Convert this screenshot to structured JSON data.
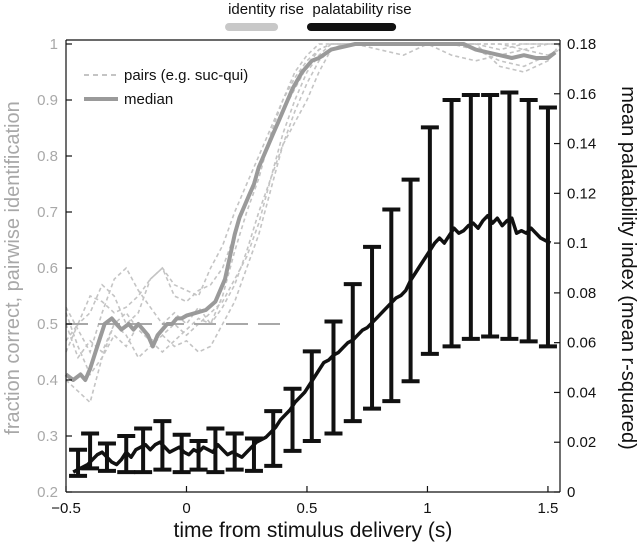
{
  "chart_data": {
    "type": "line",
    "xlabel": "time from stimulus delivery (s)",
    "ylabel_left": "fraction correct, pairwise identification",
    "ylabel_right": "mean palatability index (mean r-squared)",
    "xlim": [
      -0.5,
      1.55
    ],
    "ylim_left": [
      0.2,
      1.0
    ],
    "ylim_right": [
      0,
      0.18
    ],
    "x_ticks": [
      {
        "value": -0.5,
        "label": "−0.5"
      },
      {
        "value": 0,
        "label": "0"
      },
      {
        "value": 0.5,
        "label": "0.5"
      },
      {
        "value": 1,
        "label": "1"
      },
      {
        "value": 1.5,
        "label": "1.5"
      }
    ],
    "y_left_ticks": [
      {
        "value": 0.2,
        "label": "0.2"
      },
      {
        "value": 0.3,
        "label": "0.3"
      },
      {
        "value": 0.4,
        "label": "0.4"
      },
      {
        "value": 0.5,
        "label": "0.5"
      },
      {
        "value": 0.6,
        "label": "0.6"
      },
      {
        "value": 0.7,
        "label": "0.7"
      },
      {
        "value": 0.8,
        "label": "0.8"
      },
      {
        "value": 0.9,
        "label": "0.9"
      },
      {
        "value": 1.0,
        "label": "1"
      }
    ],
    "y_right_ticks": [
      {
        "value": 0,
        "label": "0"
      },
      {
        "value": 0.02,
        "label": "0.02"
      },
      {
        "value": 0.04,
        "label": "0.04"
      },
      {
        "value": 0.06,
        "label": "0.06"
      },
      {
        "value": 0.08,
        "label": "0.08"
      },
      {
        "value": 0.1,
        "label": "0.1"
      },
      {
        "value": 0.12,
        "label": "0.12"
      },
      {
        "value": 0.14,
        "label": "0.14"
      },
      {
        "value": 0.16,
        "label": "0.16"
      },
      {
        "value": 0.18,
        "label": "0.18"
      }
    ],
    "chance_level": 0.5,
    "legend": {
      "placement": "top-left",
      "entries": [
        {
          "label": "pairs (e.g. suc-qui)",
          "style": "dashed",
          "color": "#c4c4c4"
        },
        {
          "label": "median",
          "style": "solid",
          "color": "#9a9a9a"
        }
      ]
    },
    "rise_bars": [
      {
        "label": "identity rise",
        "x_start": 0.16,
        "x_end": 0.38,
        "color": "#c8c8c8"
      },
      {
        "label": "palatability rise",
        "x_start": 0.5,
        "x_end": 0.87,
        "color": "#111111"
      }
    ],
    "series": [
      {
        "name": "median",
        "axis": "left",
        "color": "#9a9a9a",
        "x": [
          -0.5,
          -0.47,
          -0.44,
          -0.42,
          -0.4,
          -0.37,
          -0.34,
          -0.31,
          -0.29,
          -0.27,
          -0.24,
          -0.22,
          -0.2,
          -0.18,
          -0.16,
          -0.14,
          -0.12,
          -0.1,
          -0.08,
          -0.06,
          -0.04,
          -0.02,
          0.0,
          0.04,
          0.08,
          0.12,
          0.16,
          0.18,
          0.2,
          0.22,
          0.24,
          0.26,
          0.28,
          0.3,
          0.32,
          0.34,
          0.36,
          0.38,
          0.4,
          0.42,
          0.44,
          0.46,
          0.48,
          0.5,
          0.52,
          0.55,
          0.6,
          0.65,
          0.7,
          0.75,
          0.8,
          0.85,
          0.9,
          0.95,
          1.0,
          1.05,
          1.1,
          1.15,
          1.2,
          1.25,
          1.3,
          1.35,
          1.4,
          1.45,
          1.5,
          1.53
        ],
        "y": [
          0.41,
          0.4,
          0.41,
          0.4,
          0.42,
          0.46,
          0.5,
          0.51,
          0.5,
          0.49,
          0.5,
          0.49,
          0.5,
          0.49,
          0.48,
          0.46,
          0.48,
          0.49,
          0.5,
          0.5,
          0.51,
          0.51,
          0.515,
          0.52,
          0.525,
          0.54,
          0.58,
          0.62,
          0.66,
          0.69,
          0.71,
          0.73,
          0.75,
          0.78,
          0.8,
          0.82,
          0.84,
          0.86,
          0.88,
          0.9,
          0.92,
          0.935,
          0.95,
          0.96,
          0.97,
          0.975,
          0.99,
          0.995,
          1.0,
          1.0,
          1.0,
          1.0,
          1.0,
          1.0,
          1.0,
          1.0,
          1.0,
          1.0,
          0.99,
          0.985,
          0.98,
          0.975,
          0.98,
          0.975,
          0.975,
          0.985
        ]
      },
      {
        "name": "pairs (e.g. suc-qui)",
        "axis": "left",
        "style": "dashed",
        "color": "#c4c4c4",
        "lines": [
          {
            "x": [
              -0.5,
              -0.45,
              -0.4,
              -0.35,
              -0.3,
              -0.25,
              -0.2,
              -0.15,
              -0.1,
              -0.05,
              0.0,
              0.05,
              0.1,
              0.15,
              0.2,
              0.25,
              0.3,
              0.35,
              0.4,
              0.45,
              0.5,
              0.55,
              0.6,
              0.65,
              0.7,
              0.8,
              0.9,
              1.0,
              1.1,
              1.2,
              1.3,
              1.4,
              1.5,
              1.55
            ],
            "y": [
              0.53,
              0.49,
              0.45,
              0.52,
              0.58,
              0.6,
              0.56,
              0.53,
              0.5,
              0.52,
              0.5,
              0.53,
              0.5,
              0.55,
              0.63,
              0.7,
              0.76,
              0.84,
              0.9,
              0.95,
              0.98,
              1.0,
              1.0,
              1.0,
              1.0,
              1.0,
              1.0,
              1.0,
              1.0,
              1.0,
              0.96,
              0.95,
              0.97,
              1.0
            ]
          },
          {
            "x": [
              -0.5,
              -0.45,
              -0.4,
              -0.35,
              -0.3,
              -0.25,
              -0.2,
              -0.15,
              -0.1,
              -0.05,
              0.0,
              0.05,
              0.1,
              0.15,
              0.2,
              0.25,
              0.3,
              0.35,
              0.4,
              0.45,
              0.5,
              0.55,
              0.6,
              0.65,
              0.7,
              0.8,
              0.9,
              1.0,
              1.1,
              1.2,
              1.3,
              1.4,
              1.5,
              1.55
            ],
            "y": [
              0.47,
              0.5,
              0.55,
              0.54,
              0.52,
              0.53,
              0.55,
              0.58,
              0.6,
              0.57,
              0.56,
              0.55,
              0.6,
              0.64,
              0.7,
              0.75,
              0.8,
              0.85,
              0.9,
              0.94,
              0.97,
              0.99,
              1.0,
              1.0,
              1.0,
              1.0,
              1.0,
              1.0,
              1.0,
              1.0,
              1.0,
              1.0,
              1.0,
              1.0
            ]
          },
          {
            "x": [
              -0.5,
              -0.45,
              -0.4,
              -0.35,
              -0.3,
              -0.25,
              -0.2,
              -0.15,
              -0.1,
              -0.05,
              0.0,
              0.05,
              0.1,
              0.15,
              0.2,
              0.25,
              0.3,
              0.35,
              0.4,
              0.45,
              0.5,
              0.55,
              0.6,
              0.65,
              0.7,
              0.8,
              0.9,
              1.0,
              1.1,
              1.2,
              1.3,
              1.4,
              1.5,
              1.55
            ],
            "y": [
              0.52,
              0.46,
              0.41,
              0.44,
              0.5,
              0.52,
              0.49,
              0.47,
              0.48,
              0.46,
              0.47,
              0.45,
              0.46,
              0.5,
              0.54,
              0.6,
              0.66,
              0.74,
              0.82,
              0.88,
              0.93,
              0.97,
              0.99,
              1.0,
              1.0,
              1.0,
              1.0,
              1.0,
              0.98,
              0.97,
              0.98,
              0.99,
              1.0,
              1.0
            ]
          },
          {
            "x": [
              -0.5,
              -0.45,
              -0.4,
              -0.35,
              -0.3,
              -0.25,
              -0.2,
              -0.15,
              -0.1,
              -0.05,
              0.0,
              0.05,
              0.1,
              0.15,
              0.2,
              0.25,
              0.3,
              0.35,
              0.4,
              0.45,
              0.5,
              0.55,
              0.6,
              0.65,
              0.7,
              0.8,
              0.9,
              1.0,
              1.1,
              1.2,
              1.3,
              1.4,
              1.5,
              1.55
            ],
            "y": [
              0.45,
              0.5,
              0.52,
              0.57,
              0.55,
              0.5,
              0.52,
              0.58,
              0.6,
              0.55,
              0.54,
              0.56,
              0.57,
              0.6,
              0.66,
              0.72,
              0.78,
              0.83,
              0.88,
              0.92,
              0.96,
              0.99,
              1.0,
              1.0,
              1.0,
              1.0,
              1.0,
              1.0,
              1.0,
              1.0,
              1.0,
              0.99,
              0.98,
              0.99
            ]
          },
          {
            "x": [
              -0.5,
              -0.45,
              -0.4,
              -0.35,
              -0.3,
              -0.25,
              -0.2,
              -0.15,
              -0.1,
              -0.05,
              0.0,
              0.05,
              0.1,
              0.15,
              0.2,
              0.25,
              0.3,
              0.35,
              0.4,
              0.45,
              0.5,
              0.55,
              0.6,
              0.65,
              0.7,
              0.8,
              0.9,
              1.0,
              1.1,
              1.2,
              1.3,
              1.4,
              1.5,
              1.55
            ],
            "y": [
              0.5,
              0.44,
              0.47,
              0.45,
              0.5,
              0.48,
              0.44,
              0.46,
              0.48,
              0.5,
              0.48,
              0.5,
              0.52,
              0.54,
              0.58,
              0.62,
              0.68,
              0.76,
              0.84,
              0.9,
              0.95,
              0.98,
              1.0,
              1.0,
              1.0,
              0.99,
              0.98,
              1.0,
              1.0,
              0.99,
              0.97,
              0.96,
              0.98,
              0.99
            ]
          },
          {
            "x": [
              -0.5,
              -0.45,
              -0.4,
              -0.35,
              -0.3,
              -0.25,
              -0.2,
              -0.15,
              -0.1,
              -0.05,
              0.0,
              0.05,
              0.1,
              0.15,
              0.2,
              0.25,
              0.3,
              0.35,
              0.4,
              0.45,
              0.5,
              0.55,
              0.6,
              0.65,
              0.7,
              0.8,
              0.9,
              1.0,
              1.1,
              1.2,
              1.3,
              1.4,
              1.5,
              1.55
            ],
            "y": [
              0.4,
              0.38,
              0.36,
              0.44,
              0.48,
              0.46,
              0.5,
              0.47,
              0.45,
              0.47,
              0.49,
              0.51,
              0.5,
              0.53,
              0.57,
              0.63,
              0.7,
              0.76,
              0.82,
              0.86,
              0.9,
              0.95,
              0.99,
              1.0,
              1.0,
              1.0,
              1.0,
              1.0,
              1.0,
              1.0,
              0.99,
              1.0,
              1.0,
              1.0
            ]
          }
        ]
      },
      {
        "name": "mean palatability index",
        "axis": "right",
        "color": "#111111",
        "x": [
          -0.47,
          -0.45,
          -0.43,
          -0.41,
          -0.39,
          -0.37,
          -0.35,
          -0.33,
          -0.31,
          -0.29,
          -0.27,
          -0.25,
          -0.23,
          -0.21,
          -0.19,
          -0.17,
          -0.15,
          -0.13,
          -0.11,
          -0.09,
          -0.07,
          -0.05,
          -0.03,
          -0.01,
          0.01,
          0.03,
          0.05,
          0.07,
          0.09,
          0.11,
          0.13,
          0.15,
          0.17,
          0.19,
          0.21,
          0.23,
          0.25,
          0.27,
          0.29,
          0.31,
          0.33,
          0.35,
          0.37,
          0.39,
          0.41,
          0.43,
          0.45,
          0.47,
          0.49,
          0.51,
          0.53,
          0.55,
          0.57,
          0.59,
          0.61,
          0.63,
          0.65,
          0.67,
          0.69,
          0.71,
          0.73,
          0.75,
          0.77,
          0.79,
          0.81,
          0.83,
          0.85,
          0.87,
          0.89,
          0.91,
          0.93,
          0.95,
          0.97,
          0.99,
          1.01,
          1.03,
          1.05,
          1.07,
          1.09,
          1.11,
          1.13,
          1.15,
          1.17,
          1.19,
          1.21,
          1.23,
          1.25,
          1.27,
          1.29,
          1.31,
          1.33,
          1.35,
          1.37,
          1.39,
          1.41,
          1.43,
          1.45,
          1.47,
          1.49,
          1.51
        ],
        "y": [
          0.008,
          0.009,
          0.01,
          0.011,
          0.013,
          0.015,
          0.016,
          0.014,
          0.012,
          0.011,
          0.013,
          0.016,
          0.014,
          0.017,
          0.018,
          0.019,
          0.017,
          0.019,
          0.02,
          0.018,
          0.016,
          0.017,
          0.018,
          0.016,
          0.015,
          0.017,
          0.016,
          0.018,
          0.017,
          0.016,
          0.019,
          0.017,
          0.015,
          0.016,
          0.015,
          0.014,
          0.016,
          0.018,
          0.02,
          0.021,
          0.022,
          0.024,
          0.026,
          0.029,
          0.031,
          0.033,
          0.036,
          0.038,
          0.04,
          0.043,
          0.046,
          0.049,
          0.052,
          0.053,
          0.055,
          0.056,
          0.058,
          0.06,
          0.061,
          0.063,
          0.065,
          0.066,
          0.068,
          0.07,
          0.072,
          0.074,
          0.076,
          0.078,
          0.079,
          0.081,
          0.085,
          0.088,
          0.091,
          0.094,
          0.097,
          0.1,
          0.102,
          0.1,
          0.103,
          0.106,
          0.104,
          0.105,
          0.107,
          0.108,
          0.106,
          0.109,
          0.111,
          0.108,
          0.11,
          0.107,
          0.109,
          0.11,
          0.104,
          0.105,
          0.104,
          0.106,
          0.104,
          0.102,
          0.101,
          0.1
        ]
      },
      {
        "name": "palatability error bars",
        "axis": "right",
        "color": "#111111",
        "points": [
          {
            "x": -0.45,
            "low": 0.0065,
            "high": 0.017
          },
          {
            "x": -0.4,
            "low": 0.0095,
            "high": 0.0235
          },
          {
            "x": -0.33,
            "low": 0.0085,
            "high": 0.0195
          },
          {
            "x": -0.25,
            "low": 0.008,
            "high": 0.0225
          },
          {
            "x": -0.18,
            "low": 0.008,
            "high": 0.0255
          },
          {
            "x": -0.1,
            "low": 0.009,
            "high": 0.0285
          },
          {
            "x": -0.02,
            "low": 0.008,
            "high": 0.023
          },
          {
            "x": 0.05,
            "low": 0.009,
            "high": 0.0205
          },
          {
            "x": 0.12,
            "low": 0.008,
            "high": 0.0255
          },
          {
            "x": 0.2,
            "low": 0.009,
            "high": 0.0235
          },
          {
            "x": 0.28,
            "low": 0.0085,
            "high": 0.0215
          },
          {
            "x": 0.36,
            "low": 0.0105,
            "high": 0.0325
          },
          {
            "x": 0.44,
            "low": 0.0165,
            "high": 0.0415
          },
          {
            "x": 0.52,
            "low": 0.0205,
            "high": 0.0565
          },
          {
            "x": 0.61,
            "low": 0.0235,
            "high": 0.0685
          },
          {
            "x": 0.69,
            "low": 0.0285,
            "high": 0.0835
          },
          {
            "x": 0.77,
            "low": 0.0335,
            "high": 0.0985
          },
          {
            "x": 0.85,
            "low": 0.0365,
            "high": 0.1135
          },
          {
            "x": 0.93,
            "low": 0.0445,
            "high": 0.1255
          },
          {
            "x": 1.01,
            "low": 0.0555,
            "high": 0.1465
          },
          {
            "x": 1.1,
            "low": 0.0585,
            "high": 0.1575
          },
          {
            "x": 1.18,
            "low": 0.0615,
            "high": 0.1595
          },
          {
            "x": 1.26,
            "low": 0.0625,
            "high": 0.1595
          },
          {
            "x": 1.34,
            "low": 0.0615,
            "high": 0.1605
          },
          {
            "x": 1.42,
            "low": 0.0605,
            "high": 0.1575
          },
          {
            "x": 1.5,
            "low": 0.0585,
            "high": 0.1545
          }
        ]
      }
    ]
  }
}
